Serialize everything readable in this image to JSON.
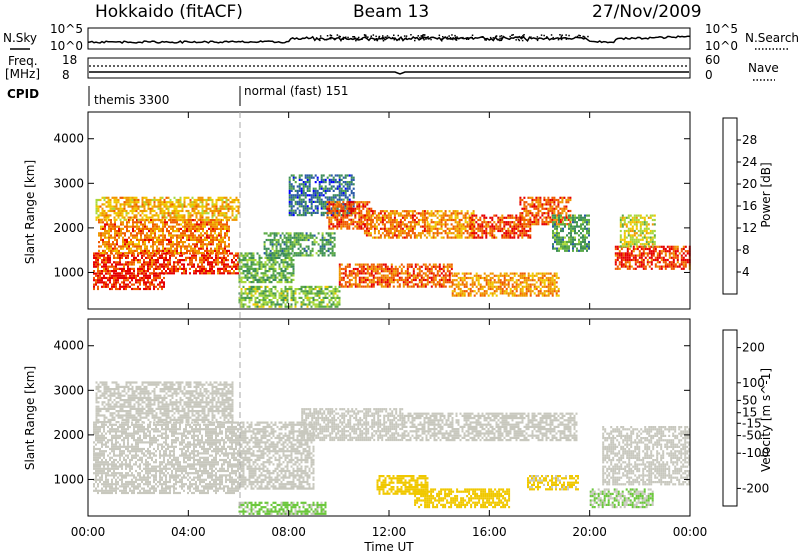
{
  "header": {
    "station": "Hokkaido (fitACF)",
    "beam": "Beam 13",
    "date": "27/Nov/2009"
  },
  "nsky_panel": {
    "left_label": "N.Sky",
    "left_ticks": [
      "10^5",
      "10^0"
    ],
    "right_ticks": [
      "10^5",
      "10^0"
    ],
    "right_label": "N.Search"
  },
  "freq_panel": {
    "left_label_line1": "Freq.",
    "left_label_line2": "[MHz]",
    "left_ticks": [
      "18",
      "8"
    ],
    "right_ticks": [
      "60",
      "0"
    ],
    "right_label": "Nave"
  },
  "cpid_panel": {
    "label": "CPID",
    "segments": [
      {
        "name": "themis 3300",
        "start_hour": 0
      },
      {
        "name": "normal (fast) 151",
        "start_hour": 6
      }
    ]
  },
  "time_axis": {
    "label": "Time UT",
    "ticks": [
      "00:00",
      "04:00",
      "08:00",
      "12:00",
      "16:00",
      "20:00",
      "00:00"
    ],
    "range_hours": [
      0,
      24
    ]
  },
  "colors": {
    "power_scale": [
      "#0000ff",
      "#2a5aa8",
      "#3c8c5a",
      "#5aaa46",
      "#a8d83c",
      "#f0c800",
      "#f09600",
      "#f05a00",
      "#e60000"
    ],
    "velocity_scale": [
      "#e60000",
      "#f05a00",
      "#f09600",
      "#f0c800",
      "#c8c8be",
      "#6cc83c",
      "#3c9650",
      "#2a5aa8",
      "#0000c8"
    ],
    "grey_scatter": "#c8c8be"
  },
  "chart_data": [
    {
      "type": "heatmap",
      "name": "power",
      "ylabel": "Slant Range [km]",
      "xlabel": "",
      "ylim": [
        180,
        4600
      ],
      "yticks": [
        1000,
        2000,
        3000,
        4000
      ],
      "colorbar": {
        "label": "Power [dB]",
        "ticks": [
          4,
          8,
          12,
          16,
          20,
          24,
          28
        ],
        "range": [
          0,
          32
        ]
      },
      "regions": [
        {
          "t": [
            0.2,
            6.0
          ],
          "r": [
            1000,
            1450
          ],
          "level": 30
        },
        {
          "t": [
            0.4,
            5.6
          ],
          "r": [
            1450,
            2200
          ],
          "level": 26
        },
        {
          "t": [
            0.3,
            6.0
          ],
          "r": [
            2200,
            2700
          ],
          "level": 22
        },
        {
          "t": [
            0.2,
            3.0
          ],
          "r": [
            650,
            1000
          ],
          "level": 31
        },
        {
          "t": [
            6.0,
            8.2
          ],
          "r": [
            800,
            1450
          ],
          "level": 12
        },
        {
          "t": [
            7.0,
            9.8
          ],
          "r": [
            1400,
            1900
          ],
          "level": 10
        },
        {
          "t": [
            8.0,
            10.6
          ],
          "r": [
            2300,
            3200
          ],
          "level": 6
        },
        {
          "t": [
            9.5,
            11.3
          ],
          "r": [
            2000,
            2600
          ],
          "level": 28
        },
        {
          "t": [
            11.0,
            13.5
          ],
          "r": [
            1800,
            2400
          ],
          "level": 26
        },
        {
          "t": [
            13.5,
            15.4
          ],
          "r": [
            1800,
            2400
          ],
          "level": 24
        },
        {
          "t": [
            15.2,
            17.6
          ],
          "r": [
            1800,
            2300
          ],
          "level": 29
        },
        {
          "t": [
            17.2,
            19.2
          ],
          "r": [
            2100,
            2700
          ],
          "level": 28
        },
        {
          "t": [
            10.0,
            14.5
          ],
          "r": [
            700,
            1200
          ],
          "level": 28
        },
        {
          "t": [
            14.5,
            18.8
          ],
          "r": [
            500,
            1000
          ],
          "level": 24
        },
        {
          "t": [
            18.5,
            20.0
          ],
          "r": [
            1500,
            2300
          ],
          "level": 10
        },
        {
          "t": [
            21.0,
            24.0
          ],
          "r": [
            1100,
            1600
          ],
          "level": 30
        },
        {
          "t": [
            21.2,
            22.6
          ],
          "r": [
            1600,
            2300
          ],
          "level": 18
        },
        {
          "t": [
            6.0,
            10.0
          ],
          "r": [
            250,
            700
          ],
          "level": 14
        }
      ]
    },
    {
      "type": "heatmap",
      "name": "velocity",
      "ylabel": "Slant Range [km]",
      "xlabel": "Time UT",
      "ylim": [
        180,
        4600
      ],
      "yticks": [
        1000,
        2000,
        3000,
        4000
      ],
      "colorbar": {
        "label": "Velocity [m s^-1]",
        "ticks": [
          200,
          100,
          50,
          15,
          -15,
          -50,
          -100,
          -200
        ],
        "range": [
          -250,
          250
        ]
      },
      "regions": [
        {
          "t": [
            0.2,
            6.0
          ],
          "r": [
            700,
            2300
          ],
          "level": 0
        },
        {
          "t": [
            0.3,
            5.8
          ],
          "r": [
            2300,
            3200
          ],
          "level": 0
        },
        {
          "t": [
            6.0,
            9.0
          ],
          "r": [
            800,
            2300
          ],
          "level": 0
        },
        {
          "t": [
            8.5,
            12.5
          ],
          "r": [
            1900,
            2600
          ],
          "level": 0
        },
        {
          "t": [
            12.5,
            19.5
          ],
          "r": [
            1900,
            2500
          ],
          "level": 0
        },
        {
          "t": [
            20.5,
            24.0
          ],
          "r": [
            900,
            2200
          ],
          "level": 0
        },
        {
          "t": [
            11.5,
            13.5
          ],
          "r": [
            700,
            1100
          ],
          "level": -60
        },
        {
          "t": [
            13.0,
            16.8
          ],
          "r": [
            400,
            800
          ],
          "level": -55
        },
        {
          "t": [
            17.5,
            19.5
          ],
          "r": [
            800,
            1100
          ],
          "level": -40
        },
        {
          "t": [
            6.0,
            9.5
          ],
          "r": [
            250,
            500
          ],
          "level": 40
        },
        {
          "t": [
            20.0,
            22.5
          ],
          "r": [
            400,
            800
          ],
          "level": 30
        }
      ]
    }
  ]
}
